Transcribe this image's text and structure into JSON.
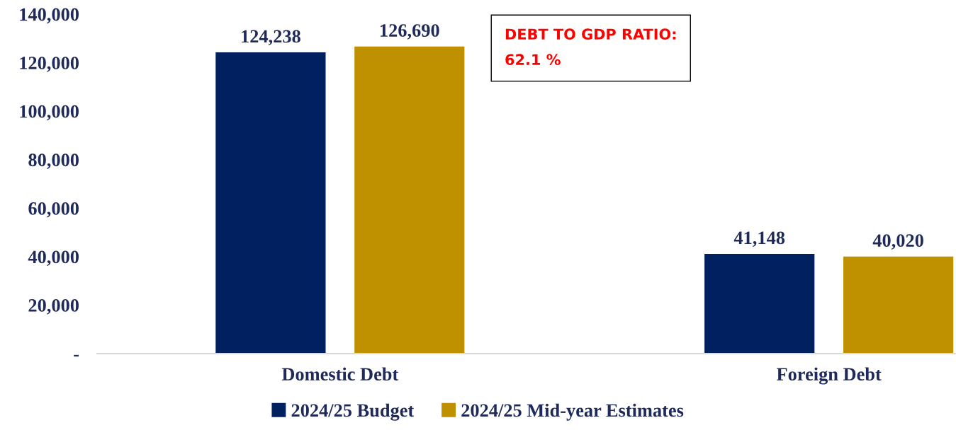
{
  "chart_data": {
    "type": "bar",
    "categories": [
      "Domestic Debt",
      "Foreign Debt"
    ],
    "series": [
      {
        "name": "2024/25 Budget",
        "color": "#002060",
        "values": [
          124238,
          41148
        ],
        "value_labels": [
          "124,238",
          "41,148"
        ]
      },
      {
        "name": "2024/25 Mid-year Estimates",
        "color": "#bf9000",
        "values": [
          126690,
          40020
        ],
        "value_labels": [
          "126,690",
          "40,020"
        ]
      }
    ],
    "ylim": [
      0,
      140000
    ],
    "yticks": [
      {
        "value": 0,
        "label": "-"
      },
      {
        "value": 20000,
        "label": "20,000"
      },
      {
        "value": 40000,
        "label": "40,000"
      },
      {
        "value": 60000,
        "label": "60,000"
      },
      {
        "value": 80000,
        "label": "80,000"
      },
      {
        "value": 100000,
        "label": "100,000"
      },
      {
        "value": 120000,
        "label": "120,000"
      },
      {
        "value": 140000,
        "label": "140,000"
      }
    ],
    "annotations": [
      "DEBT TO GDP RATIO:\n62.1 %"
    ],
    "grid": false,
    "legend": "bottom"
  }
}
